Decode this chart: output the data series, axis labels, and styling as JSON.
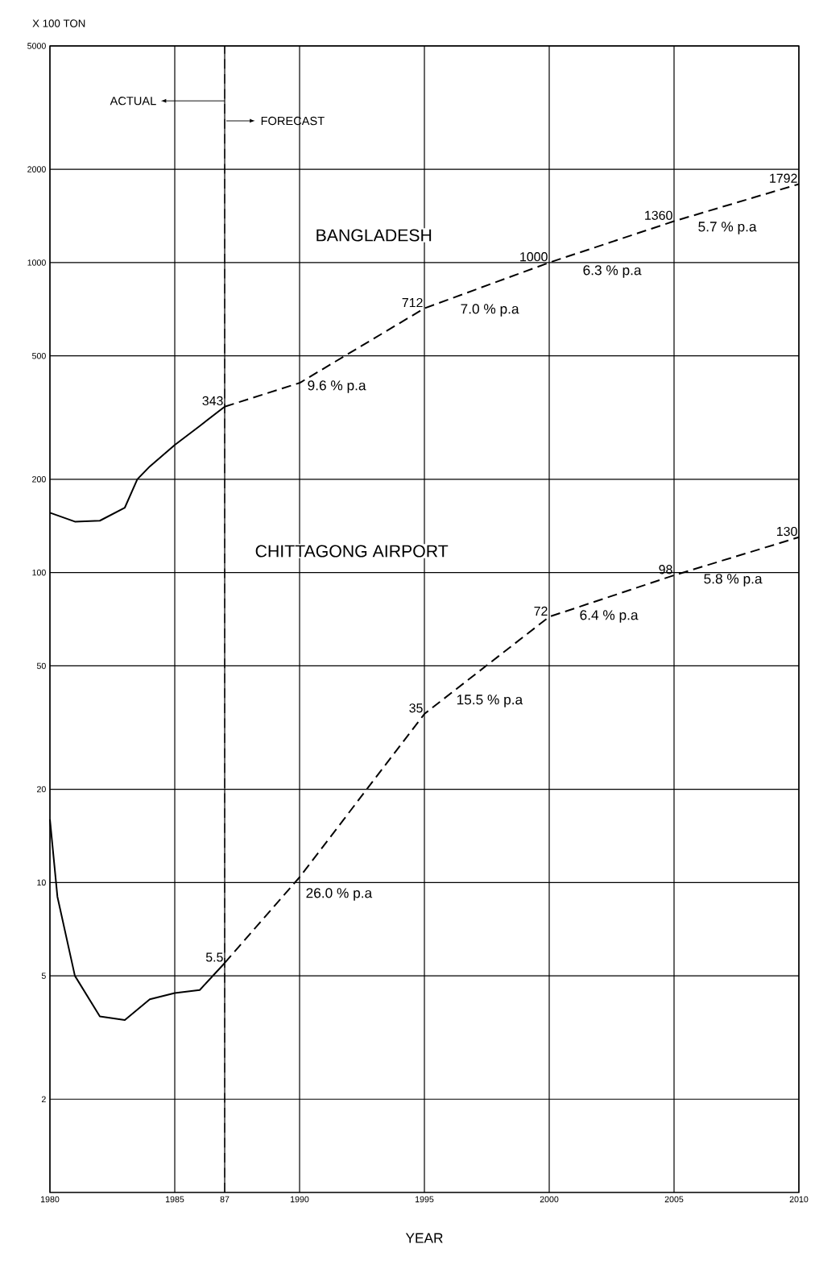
{
  "chart_data": {
    "type": "line",
    "xlabel": "YEAR",
    "ylabel": "X 100 TON",
    "log": "y",
    "grid": true,
    "marker": "none",
    "xlim": [
      1980,
      2010
    ],
    "ylim": [
      1,
      5000
    ],
    "xticks": [
      1980,
      1985,
      {
        "value": 1987,
        "label": "87"
      },
      1990,
      1995,
      2000,
      2005,
      2010
    ],
    "yticks": [
      2,
      5,
      10,
      20,
      50,
      100,
      200,
      500,
      1000,
      2000,
      5000
    ],
    "series": [
      {
        "color": "#000000",
        "line_style": "solid",
        "x": [
          1980,
          1981,
          1982,
          1983,
          1983.5,
          1984,
          1985,
          1986,
          1987
        ],
        "values": [
          156,
          146,
          147,
          162,
          200,
          220,
          258,
          297,
          343
        ]
      },
      {
        "color": "#000000",
        "line_style": "dashed",
        "x": [
          1987,
          1990,
          1995,
          2000,
          2005,
          2010
        ],
        "values": [
          343,
          409,
          712,
          1000,
          1360,
          1792
        ],
        "value_labels": [
          "343",
          null,
          "712",
          "1000",
          "1360",
          "1792"
        ]
      },
      {
        "color": "#000000",
        "line_style": "solid",
        "x": [
          1980,
          1980.3,
          1981,
          1982,
          1983,
          1984,
          1985,
          1986,
          1987
        ],
        "values": [
          16,
          9,
          5,
          3.7,
          3.6,
          4.2,
          4.4,
          4.5,
          5.5
        ]
      },
      {
        "color": "#000000",
        "line_style": "dashed",
        "x": [
          1987,
          1990,
          1995,
          2000,
          2005,
          2010
        ],
        "values": [
          5.5,
          10.4,
          35,
          72,
          98,
          130
        ],
        "value_labels": [
          "5.5",
          null,
          "35",
          "72",
          "98",
          "130"
        ]
      }
    ],
    "ref_lines": [
      {
        "axis": "x",
        "value": 1987,
        "line_style": "dashed",
        "color": "#000000"
      }
    ],
    "annotations": [
      {
        "text": "ACTUAL",
        "x": 1987,
        "y": 3325
      },
      "FORECAST",
      "BANGLADESH",
      "CHITTAGONG AIRPORT",
      "9.6 % p.a",
      "7.0 % p.a",
      "6.3 % p.a",
      "5.7 % p.a",
      "26.0 % p.a",
      "15.5 % p.a",
      "6.4 % p.a",
      "5.8 % p.a"
    ]
  }
}
